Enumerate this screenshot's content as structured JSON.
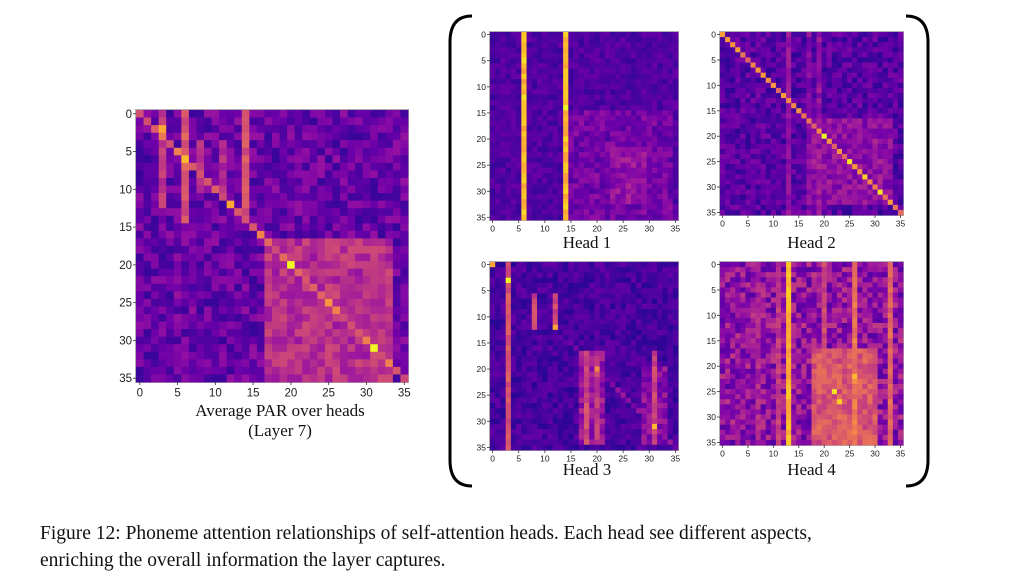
{
  "figure": {
    "caption_line1": "Figure 12: Phoneme attention relationships of self-attention heads. Each head see different aspects,",
    "caption_line2": "enriching the overall information the layer captures."
  },
  "colormap": [
    "#0d0887",
    "#41049d",
    "#6a00a8",
    "#8f0da4",
    "#b12a90",
    "#cc4778",
    "#e16462",
    "#f2844b",
    "#fca636",
    "#fcce25",
    "#f0f921"
  ],
  "frame_color": "#b0b0b0",
  "chart_data": [
    {
      "id": "avg",
      "type": "heatmap",
      "title_line1": "Average PAR over heads",
      "title_line2": "(Layer 7)",
      "n": 36,
      "yticks": [
        "0",
        "5",
        "10",
        "15",
        "20",
        "25",
        "30",
        "35"
      ],
      "xticks": [
        "0",
        "5",
        "10",
        "15",
        "20",
        "25",
        "30",
        "35"
      ],
      "pattern": {
        "base": 0.2,
        "noise": 0.12,
        "seed": 7,
        "columns": [
          {
            "c": 3,
            "v": 0.45,
            "rows": [
              0,
              12
            ]
          },
          {
            "c": 6,
            "v": 0.55,
            "rows": [
              0,
              14
            ]
          },
          {
            "c": 8,
            "v": 0.4,
            "rows": [
              4,
              10
            ]
          },
          {
            "c": 11,
            "v": 0.4,
            "rows": [
              4,
              10
            ]
          },
          {
            "c": 14,
            "v": 0.55,
            "rows": [
              0,
              14
            ]
          },
          {
            "c": 31,
            "v": 0.4,
            "rows": [
              17,
              34
            ]
          }
        ],
        "diagonal": {
          "v": 0.6,
          "from": 0,
          "to": 35
        },
        "blocks": [
          {
            "r": [
              17,
              35
            ],
            "c": [
              17,
              33
            ],
            "v": 0.42
          }
        ],
        "hot": [
          {
            "r": 20,
            "c": 20,
            "v": 1.0
          },
          {
            "r": 31,
            "c": 31,
            "v": 1.0
          },
          {
            "r": 6,
            "c": 6,
            "v": 0.85
          },
          {
            "r": 2,
            "c": 3,
            "v": 0.8
          },
          {
            "r": 12,
            "c": 12,
            "v": 0.8
          },
          {
            "r": 25,
            "c": 25,
            "v": 0.75
          }
        ]
      }
    },
    {
      "id": "h1",
      "type": "heatmap",
      "title": "Head 1",
      "n": 36,
      "yticks": [
        "0",
        "5",
        "10",
        "15",
        "20",
        "25",
        "30",
        "35"
      ],
      "xticks": [
        "0",
        "5",
        "10",
        "15",
        "20",
        "25",
        "30",
        "35"
      ],
      "pattern": {
        "base": 0.14,
        "noise": 0.06,
        "seed": 11,
        "columns": [
          {
            "c": 6,
            "v": 0.85,
            "rows": [
              0,
              35
            ]
          },
          {
            "c": 14,
            "v": 0.85,
            "rows": [
              0,
              35
            ]
          }
        ],
        "blocks": [
          {
            "r": [
              15,
              35
            ],
            "c": [
              15,
              34
            ],
            "v": 0.22
          },
          {
            "r": [
              22,
              32
            ],
            "c": [
              23,
              29
            ],
            "v": 0.3
          }
        ],
        "hot": [
          {
            "r": 14,
            "c": 14,
            "v": 1.0
          },
          {
            "r": 5,
            "c": 6,
            "v": 0.95
          },
          {
            "r": 12,
            "c": 6,
            "v": 0.95
          }
        ]
      }
    },
    {
      "id": "h2",
      "type": "heatmap",
      "title": "Head 2",
      "n": 36,
      "yticks": [
        "0",
        "5",
        "10",
        "15",
        "20",
        "25",
        "30",
        "35"
      ],
      "xticks": [
        "0",
        "5",
        "10",
        "15",
        "20",
        "25",
        "30",
        "35"
      ],
      "pattern": {
        "base": 0.16,
        "noise": 0.1,
        "seed": 23,
        "columns": [
          {
            "c": 13,
            "v": 0.3,
            "rows": [
              0,
              35
            ]
          },
          {
            "c": 17,
            "v": 0.28,
            "rows": [
              0,
              35
            ]
          },
          {
            "c": 19,
            "v": 0.3,
            "rows": [
              0,
              35
            ]
          }
        ],
        "diagonal": {
          "v": 0.68,
          "from": 0,
          "to": 35
        },
        "blocks": [
          {
            "r": [
              17,
              33
            ],
            "c": [
              18,
              33
            ],
            "v": 0.3
          }
        ],
        "hot": [
          {
            "r": 20,
            "c": 20,
            "v": 1.0
          },
          {
            "r": 25,
            "c": 25,
            "v": 0.95
          },
          {
            "r": 28,
            "c": 28,
            "v": 0.9
          },
          {
            "r": 31,
            "c": 31,
            "v": 0.95
          },
          {
            "r": 2,
            "c": 2,
            "v": 0.75
          },
          {
            "r": 6,
            "c": 6,
            "v": 0.7
          }
        ]
      }
    },
    {
      "id": "h3",
      "type": "heatmap",
      "title": "Head 3",
      "n": 36,
      "yticks": [
        "0",
        "5",
        "10",
        "15",
        "20",
        "25",
        "30",
        "35"
      ],
      "xticks": [
        "0",
        "5",
        "10",
        "15",
        "20",
        "25",
        "30",
        "35"
      ],
      "pattern": {
        "base": 0.12,
        "noise": 0.07,
        "seed": 31,
        "columns": [
          {
            "c": 3,
            "v": 0.55,
            "rows": [
              0,
              35
            ]
          },
          {
            "c": 8,
            "v": 0.5,
            "rows": [
              6,
              12
            ]
          },
          {
            "c": 12,
            "v": 0.5,
            "rows": [
              6,
              12
            ]
          },
          {
            "c": 18,
            "v": 0.5,
            "rows": [
              17,
              34
            ]
          },
          {
            "c": 20,
            "v": 0.45,
            "rows": [
              17,
              34
            ]
          },
          {
            "c": 31,
            "v": 0.48,
            "rows": [
              17,
              34
            ]
          }
        ],
        "diagonal": {
          "v": 0.3,
          "from": 15,
          "to": 35
        },
        "blocks": [
          {
            "r": [
              17,
              34
            ],
            "c": [
              17,
              21
            ],
            "v": 0.32
          },
          {
            "r": [
              20,
              34
            ],
            "c": [
              29,
              33
            ],
            "v": 0.28
          }
        ],
        "hot": [
          {
            "r": 3,
            "c": 3,
            "v": 1.0
          },
          {
            "r": 0,
            "c": 0,
            "v": 0.8
          },
          {
            "r": 12,
            "c": 12,
            "v": 0.8
          },
          {
            "r": 31,
            "c": 31,
            "v": 0.85
          },
          {
            "r": 20,
            "c": 20,
            "v": 0.7
          }
        ]
      }
    },
    {
      "id": "h4",
      "type": "heatmap",
      "title": "Head 4",
      "n": 36,
      "yticks": [
        "0",
        "5",
        "10",
        "15",
        "20",
        "25",
        "30",
        "35"
      ],
      "xticks": [
        "0",
        "5",
        "10",
        "15",
        "20",
        "25",
        "30",
        "35"
      ],
      "pattern": {
        "base": 0.3,
        "noise": 0.16,
        "seed": 43,
        "columns": [
          {
            "c": 13,
            "v": 0.82,
            "rows": [
              0,
              35
            ]
          },
          {
            "c": 11,
            "v": 0.45,
            "rows": [
              0,
              35
            ]
          },
          {
            "c": 20,
            "v": 0.5,
            "rows": [
              0,
              35
            ]
          },
          {
            "c": 26,
            "v": 0.65,
            "rows": [
              0,
              35
            ]
          },
          {
            "c": 33,
            "v": 0.6,
            "rows": [
              0,
              35
            ]
          },
          {
            "c": 7,
            "v": 0.38,
            "rows": [
              0,
              35
            ]
          }
        ],
        "blocks": [
          {
            "r": [
              17,
              35
            ],
            "c": [
              18,
              30
            ],
            "v": 0.55
          }
        ],
        "hot": [
          {
            "r": 25,
            "c": 22,
            "v": 0.95
          },
          {
            "r": 27,
            "c": 23,
            "v": 0.9
          },
          {
            "r": 22,
            "c": 26,
            "v": 0.85
          },
          {
            "r": 5,
            "c": 13,
            "v": 0.9
          }
        ]
      }
    }
  ]
}
